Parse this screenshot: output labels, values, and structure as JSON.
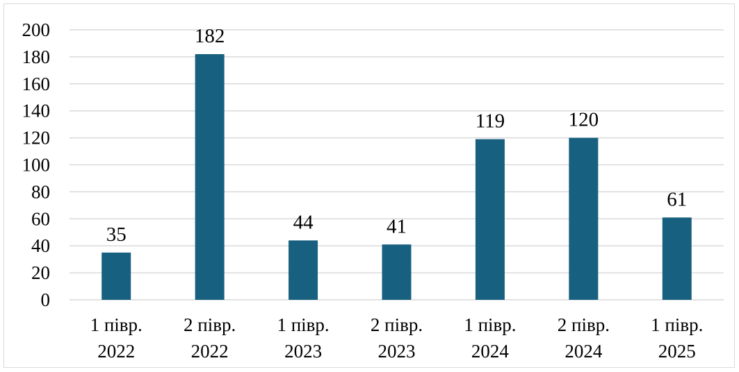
{
  "chart_data": {
    "type": "bar",
    "title": "",
    "xlabel": "",
    "ylabel": "",
    "categories": [
      [
        "1 півр.",
        "2022"
      ],
      [
        "2 півр.",
        "2022"
      ],
      [
        "1 півр.",
        "2023"
      ],
      [
        "2 півр.",
        "2023"
      ],
      [
        "1 півр.",
        "2024"
      ],
      [
        "2 півр.",
        "2024"
      ],
      [
        "1 півр.",
        "2025"
      ]
    ],
    "values": [
      35,
      182,
      44,
      41,
      119,
      120,
      61
    ],
    "ylim": [
      0,
      200
    ],
    "yticks": [
      0,
      20,
      40,
      60,
      80,
      100,
      120,
      140,
      160,
      180,
      200
    ],
    "grid": true,
    "legend": "none",
    "data_labels": true,
    "bar_color": "#17607f",
    "grid_color": "#d9d9d9"
  }
}
